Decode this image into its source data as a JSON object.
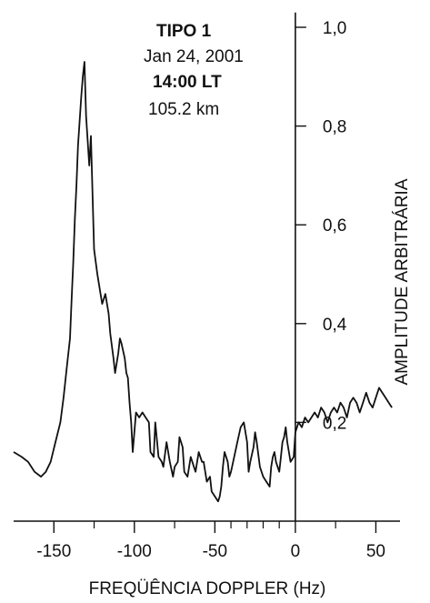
{
  "chart_data": {
    "type": "line",
    "annotations": {
      "line1": "TIPO 1",
      "line2": "Jan 24, 2001",
      "line3": "14:00 LT",
      "line4": "105.2 km"
    },
    "xlabel": "FREQÜÊNCIA DOPPLER (Hz)",
    "ylabel": "AMPLITUDE ARBITRÁRIA",
    "xlim": [
      -175,
      65
    ],
    "ylim": [
      0.0,
      1.0
    ],
    "x_ticks": [
      -150,
      -100,
      -50,
      0,
      50
    ],
    "x_tick_labels": [
      "-150",
      "-100",
      "-50",
      "0",
      "50"
    ],
    "x_minor_ticks": [
      -125,
      -75,
      -40,
      -30,
      -20,
      -10,
      25
    ],
    "y_ticks": [
      0.2,
      0.4,
      0.6,
      0.8,
      1.0
    ],
    "y_tick_labels": [
      "0,2",
      "0,4",
      "0,6",
      "0,8",
      "1,0"
    ],
    "series": [
      {
        "x": [
          -175,
          -170,
          -166,
          -162,
          -158,
          -155,
          -152,
          -149,
          -146,
          -144,
          -142,
          -140,
          -139,
          -138,
          -137,
          -136,
          -135,
          -134,
          -133,
          -132,
          -131,
          -130,
          -128,
          -127,
          -125,
          -123,
          -121,
          -120,
          -118,
          -116,
          -115,
          -113,
          -112,
          -110,
          -109,
          -108,
          -106,
          -105,
          -104,
          -103,
          -102,
          -101,
          -100,
          -99,
          -97,
          -95,
          -93,
          -91,
          -90,
          -88,
          -87,
          -85,
          -83,
          -82,
          -80,
          -78,
          -76,
          -75,
          -73,
          -72,
          -70,
          -69,
          -67,
          -65,
          -63,
          -62,
          -60,
          -58,
          -57,
          -55,
          -53,
          -52,
          -50,
          -48,
          -47,
          -46,
          -45,
          -44,
          -42,
          -41,
          -40,
          -38,
          -36,
          -34,
          -32,
          -30,
          -29,
          -28,
          -26,
          -25,
          -24,
          -22,
          -20,
          -18,
          -16,
          -15,
          -14,
          -13,
          -12,
          -11,
          -10,
          -9,
          -8,
          -7,
          -6,
          -5,
          -3,
          -1,
          0,
          2,
          4,
          6,
          8,
          10,
          12,
          14,
          16,
          18,
          20,
          22,
          24,
          26,
          28,
          30,
          32,
          34,
          36,
          38,
          40,
          42,
          44,
          46,
          48,
          50,
          52,
          54,
          56,
          58,
          60
        ],
        "y": [
          0.14,
          0.13,
          0.12,
          0.1,
          0.09,
          0.1,
          0.12,
          0.16,
          0.2,
          0.25,
          0.31,
          0.37,
          0.45,
          0.52,
          0.61,
          0.68,
          0.76,
          0.81,
          0.86,
          0.9,
          0.93,
          0.82,
          0.72,
          0.78,
          0.55,
          0.5,
          0.46,
          0.44,
          0.46,
          0.42,
          0.38,
          0.33,
          0.3,
          0.34,
          0.37,
          0.36,
          0.33,
          0.3,
          0.29,
          0.24,
          0.2,
          0.14,
          0.18,
          0.22,
          0.21,
          0.22,
          0.21,
          0.2,
          0.14,
          0.13,
          0.2,
          0.13,
          0.12,
          0.11,
          0.16,
          0.12,
          0.09,
          0.11,
          0.12,
          0.17,
          0.15,
          0.1,
          0.09,
          0.13,
          0.11,
          0.1,
          0.14,
          0.12,
          0.12,
          0.08,
          0.09,
          0.06,
          0.05,
          0.04,
          0.05,
          0.07,
          0.11,
          0.14,
          0.12,
          0.09,
          0.1,
          0.13,
          0.16,
          0.19,
          0.2,
          0.16,
          0.1,
          0.12,
          0.15,
          0.18,
          0.16,
          0.11,
          0.09,
          0.08,
          0.07,
          0.11,
          0.13,
          0.14,
          0.12,
          0.11,
          0.1,
          0.13,
          0.16,
          0.17,
          0.19,
          0.16,
          0.12,
          0.13,
          0.18,
          0.2,
          0.19,
          0.21,
          0.2,
          0.21,
          0.22,
          0.21,
          0.23,
          0.22,
          0.2,
          0.22,
          0.23,
          0.22,
          0.24,
          0.23,
          0.21,
          0.24,
          0.25,
          0.24,
          0.22,
          0.24,
          0.26,
          0.24,
          0.23,
          0.25,
          0.27,
          0.26,
          0.25,
          0.24,
          0.23
        ]
      }
    ],
    "colors": {
      "line": "#111111",
      "axis": "#111111",
      "background": "#ffffff"
    }
  }
}
